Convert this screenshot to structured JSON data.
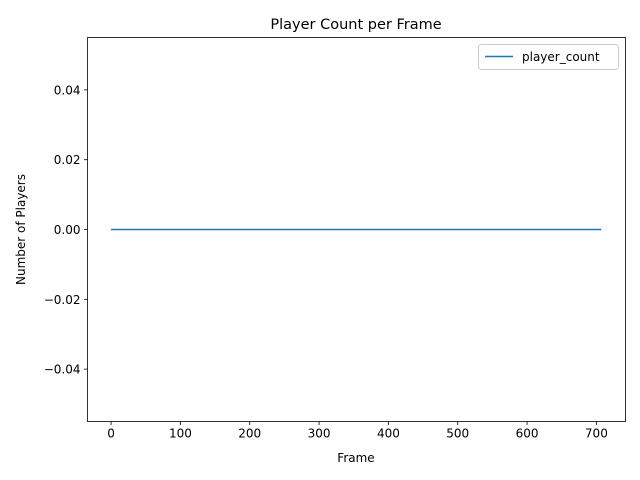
{
  "chart_data": {
    "type": "line",
    "title": "Player Count per Frame",
    "xlabel": "Frame",
    "ylabel": "Number of Players",
    "xlim": [
      -34,
      742
    ],
    "ylim": [
      -0.055,
      0.055
    ],
    "xticks": [
      0,
      100,
      200,
      300,
      400,
      500,
      600,
      700
    ],
    "yticks": [
      -0.04,
      -0.02,
      0.0,
      0.02,
      0.04
    ],
    "ytick_labels": [
      "−0.04",
      "−0.02",
      "0.00",
      "0.02",
      "0.04"
    ],
    "grid": false,
    "legend_position": "top-right",
    "series": [
      {
        "name": "player_count",
        "color": "#1f77b4",
        "x": [
          0,
          707
        ],
        "y": [
          0,
          0
        ]
      }
    ]
  }
}
